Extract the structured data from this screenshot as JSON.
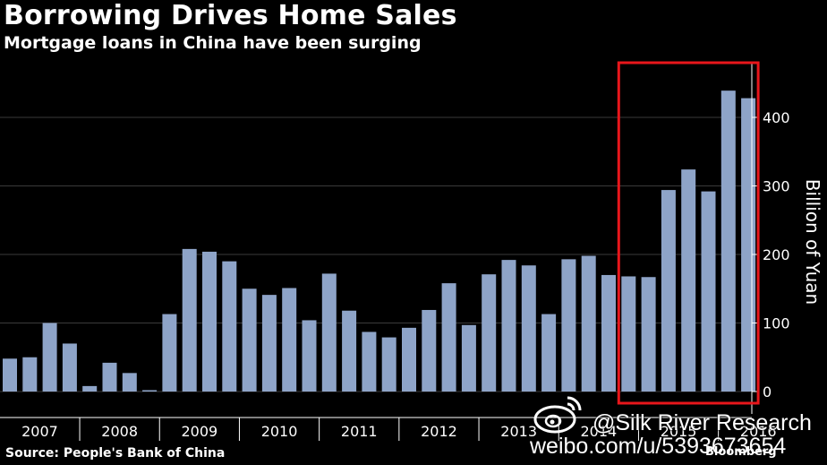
{
  "header": {
    "title": "Borrowing Drives Home Sales",
    "subtitle": "Mortgage loans in China have been surging"
  },
  "footer": {
    "source": "Source: People's Bank of China",
    "brand": "Bloomberg"
  },
  "watermark": {
    "handle": "@Silk River Research",
    "url": "weibo.com/u/5393673654"
  },
  "colors": {
    "background": "#000000",
    "bar": "#8ea4c8",
    "highlight_box": "#e8161b",
    "text": "#ffffff",
    "grid": "#3a3a3a"
  },
  "chart_data": {
    "type": "bar",
    "title": "Borrowing Drives Home Sales",
    "subtitle": "Mortgage loans in China have been surging",
    "ylabel": "Billion of Yuan",
    "xlabel": "",
    "ylim": [
      -15,
      480
    ],
    "yticks": [
      0,
      100,
      200,
      300,
      400
    ],
    "grid": true,
    "year_labels": [
      "2007",
      "2008",
      "2009",
      "2010",
      "2011",
      "2012",
      "2013",
      "2014",
      "2015",
      "2016"
    ],
    "quarters_per_year": 4,
    "first_quarter": "2007 Q1",
    "values": [
      48,
      50,
      100,
      70,
      8,
      42,
      27,
      2,
      113,
      208,
      204,
      190,
      150,
      141,
      151,
      104,
      172,
      118,
      87,
      79,
      93,
      119,
      158,
      97,
      171,
      192,
      184,
      113,
      193,
      198,
      170,
      168,
      167,
      294,
      324,
      292,
      439,
      428
    ],
    "highlight": {
      "from_index": 31,
      "to_index": 37,
      "color": "#e8161b"
    }
  }
}
